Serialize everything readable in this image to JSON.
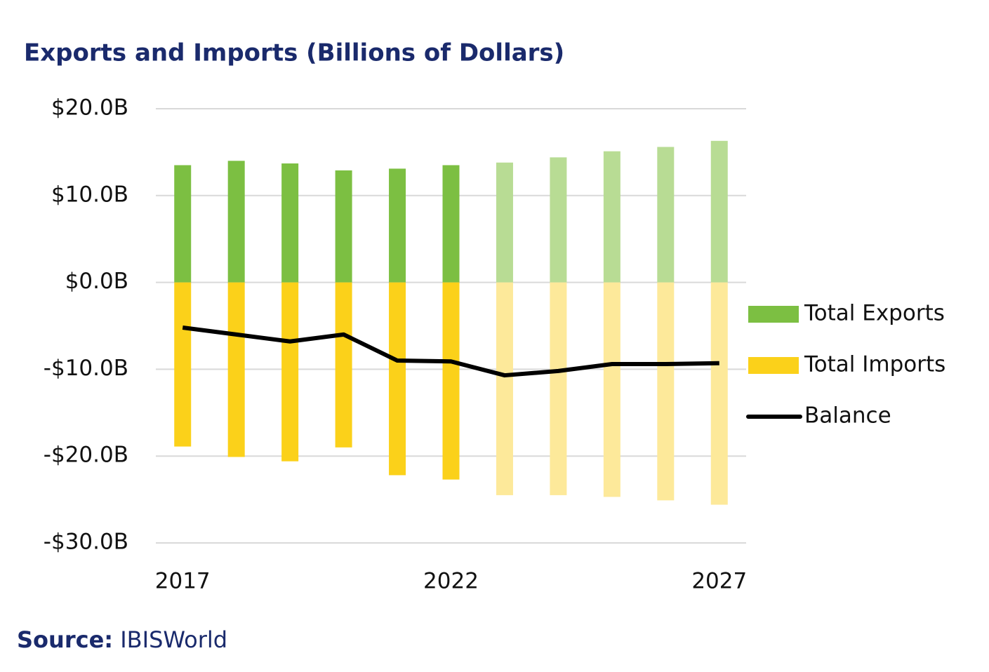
{
  "chart_data": {
    "type": "bar-line",
    "title": "Exports and Imports (Billions of Dollars)",
    "categories": [
      "2017",
      null,
      null,
      null,
      null,
      "2022",
      null,
      null,
      null,
      null,
      "2027"
    ],
    "series": [
      {
        "name": "Total Exports",
        "type": "bar",
        "color": "#7cbf42",
        "colors": [
          "#7cbf42",
          "#7cbf42",
          "#7cbf42",
          "#7cbf42",
          "#7cbf42",
          "#7cbf42",
          "#b8dc94",
          "#b8dc94",
          "#b8dc94",
          "#b8dc94",
          "#b8dc94"
        ],
        "values": [
          13.5,
          14.0,
          13.7,
          12.9,
          13.1,
          13.5,
          13.8,
          14.4,
          15.1,
          15.6,
          16.3
        ]
      },
      {
        "name": "Total Imports",
        "type": "bar",
        "color": "#fbd11a",
        "colors": [
          "#fbd11a",
          "#fbd11a",
          "#fbd11a",
          "#fbd11a",
          "#fbd11a",
          "#fbd11a",
          "#fde99a",
          "#fde99a",
          "#fde99a",
          "#fde99a",
          "#fde99a"
        ],
        "values": [
          -18.9,
          -20.1,
          -20.6,
          -19.0,
          -22.2,
          -22.7,
          -24.5,
          -24.5,
          -24.7,
          -25.1,
          -25.6
        ]
      },
      {
        "name": "Balance",
        "type": "line",
        "color": "#000000",
        "values": [
          -5.2,
          -6.0,
          -6.8,
          -6.0,
          -9.0,
          -9.1,
          -10.7,
          -10.2,
          -9.4,
          -9.4,
          -9.3
        ]
      }
    ],
    "ylim": [
      -30,
      20
    ],
    "yticks": [
      {
        "value": 20,
        "label": "$20.0B"
      },
      {
        "value": 10,
        "label": "$10.0B"
      },
      {
        "value": 0,
        "label": "$0.0B"
      },
      {
        "value": -10,
        "label": "-$10.0B"
      },
      {
        "value": -20,
        "label": "-$20.0B"
      },
      {
        "value": -30,
        "label": "-$30.0B"
      }
    ],
    "grid": true,
    "legend": "right",
    "source_label": "Source:",
    "source": "IBISWorld"
  }
}
